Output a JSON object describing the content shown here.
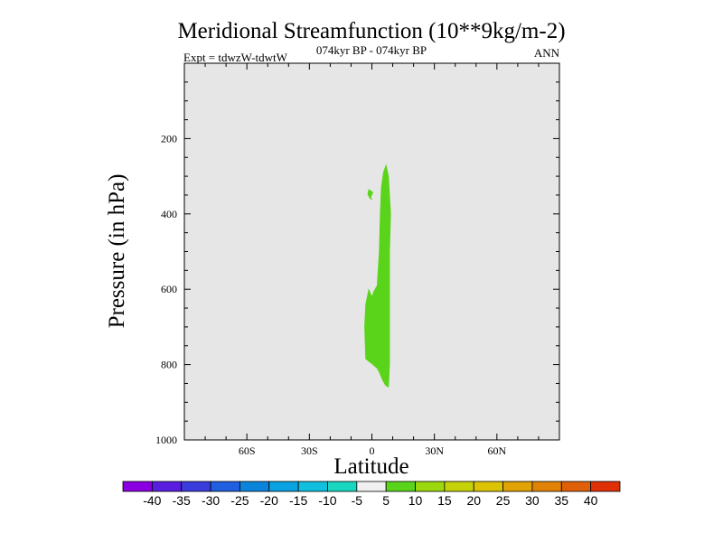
{
  "chart_data": {
    "type": "heatmap",
    "title": "Meridional Streamfunction (10**9kg/m-2)",
    "subtitle": "074kyr BP - 074kyr BP",
    "left_label": "Expt = tdwzW-tdwtW",
    "right_label": "ANN",
    "xlabel": "Latitude",
    "ylabel": "Pressure (in hPa)",
    "xlim": [
      -90,
      90
    ],
    "ylim": [
      1000,
      0
    ],
    "x_ticks": [
      {
        "value": -60,
        "label": "60S"
      },
      {
        "value": -30,
        "label": "30S"
      },
      {
        "value": 0,
        "label": "0"
      },
      {
        "value": 30,
        "label": "30N"
      },
      {
        "value": 60,
        "label": "60N"
      }
    ],
    "y_ticks": [
      {
        "value": 200,
        "label": "200"
      },
      {
        "value": 400,
        "label": "400"
      },
      {
        "value": 600,
        "label": "600"
      },
      {
        "value": 800,
        "label": "800"
      },
      {
        "value": 1000,
        "label": "1000"
      }
    ],
    "background_color": "#e6e6e6",
    "colorbar": {
      "levels": [
        "-40",
        "-35",
        "-30",
        "-25",
        "-20",
        "-15",
        "-10",
        "-5",
        "5",
        "10",
        "15",
        "20",
        "25",
        "30",
        "35",
        "40"
      ],
      "colors": [
        "#8a00e0",
        "#5a1ee0",
        "#3a3cdc",
        "#1f5fe0",
        "#0c84dc",
        "#0aa2e0",
        "#10bedd",
        "#18d6c0",
        "#f0f0f0",
        "#5ad41a",
        "#9cd80e",
        "#c6d208",
        "#dcc404",
        "#e0a204",
        "#e08206",
        "#e0600a",
        "#e03006"
      ]
    },
    "contours": [
      {
        "value": "5 to 10",
        "color": "#5ad41a",
        "polygon": [
          [
            -1.5,
            600
          ],
          [
            0,
            620
          ],
          [
            1,
            605
          ],
          [
            2.5,
            590
          ],
          [
            3.5,
            500
          ],
          [
            4,
            400
          ],
          [
            4.5,
            330
          ],
          [
            5.5,
            290
          ],
          [
            6.8,
            270
          ],
          [
            8,
            300
          ],
          [
            9,
            400
          ],
          [
            8.5,
            500
          ],
          [
            8.5,
            600
          ],
          [
            8.5,
            700
          ],
          [
            8.5,
            800
          ],
          [
            8,
            860
          ],
          [
            6.5,
            855
          ],
          [
            5,
            840
          ],
          [
            3.5,
            820
          ],
          [
            2.5,
            810
          ],
          [
            0.5,
            800
          ],
          [
            -3,
            785
          ],
          [
            -3.5,
            700
          ],
          [
            -3,
            640
          ]
        ]
      },
      {
        "value": "5 to 10",
        "color": "#5ad41a",
        "polygon": [
          [
            -1.5,
            335
          ],
          [
            0.5,
            343
          ],
          [
            -0.5,
            355
          ],
          [
            0,
            362
          ],
          [
            -1,
            358
          ],
          [
            -2,
            348
          ]
        ]
      }
    ]
  }
}
